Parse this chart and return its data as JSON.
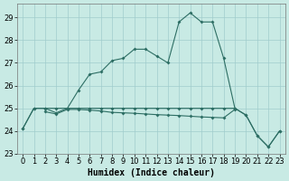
{
  "title": "",
  "xlabel": "Humidex (Indice chaleur)",
  "background_color": "#c8eae4",
  "grid_color": "#a0cccc",
  "line_color": "#2d6e64",
  "xlim": [
    -0.5,
    23.5
  ],
  "ylim": [
    23.0,
    29.6
  ],
  "yticks": [
    23,
    24,
    25,
    26,
    27,
    28,
    29
  ],
  "xticks": [
    0,
    1,
    2,
    3,
    4,
    5,
    6,
    7,
    8,
    9,
    10,
    11,
    12,
    13,
    14,
    15,
    16,
    17,
    18,
    19,
    20,
    21,
    22,
    23
  ],
  "line1_x": [
    0,
    1,
    2,
    3,
    4,
    5,
    6,
    7,
    8,
    9,
    10,
    11,
    12,
    13,
    14,
    15,
    16,
    17,
    18,
    19,
    20,
    21,
    22,
    23
  ],
  "line1_y": [
    24.1,
    25.0,
    25.0,
    24.8,
    25.0,
    25.8,
    26.5,
    26.6,
    27.1,
    27.2,
    27.6,
    27.6,
    27.3,
    27.0,
    28.8,
    29.2,
    28.8,
    28.8,
    27.2,
    25.0,
    24.7,
    23.8,
    23.3,
    24.0
  ],
  "line2_x": [
    2,
    3,
    4,
    5,
    6,
    7,
    8,
    9,
    10,
    11,
    12,
    13,
    14,
    15,
    16,
    17,
    18,
    19
  ],
  "line2_y": [
    24.85,
    24.75,
    24.95,
    24.95,
    24.92,
    24.88,
    24.82,
    24.8,
    24.78,
    24.75,
    24.72,
    24.7,
    24.68,
    24.65,
    24.62,
    24.6,
    24.58,
    24.95
  ],
  "line3_x": [
    0,
    1,
    2,
    3,
    4,
    5,
    6,
    7,
    8,
    9,
    10,
    11,
    12,
    13,
    14,
    15,
    16,
    17,
    18,
    19,
    20,
    21,
    22,
    23
  ],
  "line3_y": [
    24.1,
    25.0,
    25.0,
    25.0,
    25.0,
    25.0,
    25.0,
    25.0,
    25.0,
    25.0,
    25.0,
    25.0,
    25.0,
    25.0,
    25.0,
    25.0,
    25.0,
    25.0,
    25.0,
    25.0,
    24.7,
    23.8,
    23.3,
    24.0
  ],
  "marker_size": 2.0,
  "line_width": 0.8,
  "xlabel_fontsize": 7,
  "tick_fontsize": 6
}
